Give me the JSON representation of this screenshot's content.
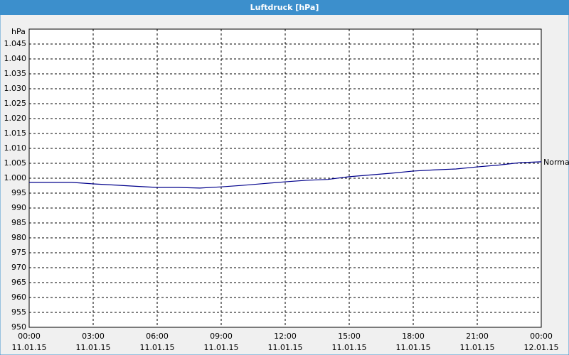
{
  "window_title": "Luftdruck [hPa]",
  "chart_data": {
    "type": "line",
    "y_unit": "hPa",
    "x": [
      0,
      1,
      2,
      3,
      4,
      5,
      6,
      7,
      8,
      9,
      10,
      11,
      12,
      13,
      14,
      15,
      16,
      17,
      18,
      19,
      20,
      21,
      22,
      23,
      24
    ],
    "series": [
      {
        "name": "Normal",
        "color": "#00008b",
        "values": [
          998.6,
          998.6,
          998.6,
          998.1,
          997.7,
          997.3,
          996.9,
          996.9,
          996.7,
          997.1,
          997.6,
          998.2,
          998.8,
          999.3,
          999.6,
          1000.5,
          1001.1,
          1001.7,
          1002.4,
          1002.8,
          1003.1,
          1003.8,
          1004.4,
          1005.2,
          1005.5
        ]
      }
    ],
    "xlim": [
      0,
      24
    ],
    "xticks": [
      {
        "value": 0,
        "label": "00:00"
      },
      {
        "value": 3,
        "label": "03:00"
      },
      {
        "value": 6,
        "label": "06:00"
      },
      {
        "value": 9,
        "label": "09:00"
      },
      {
        "value": 12,
        "label": "12:00"
      },
      {
        "value": 15,
        "label": "15:00"
      },
      {
        "value": 18,
        "label": "18:00"
      },
      {
        "value": 21,
        "label": "21:00"
      },
      {
        "value": 24,
        "label": "00:00"
      }
    ],
    "xtick_dates": [
      "11.01.15",
      "11.01.15",
      "11.01.15",
      "11.01.15",
      "11.01.15",
      "11.01.15",
      "11.01.15",
      "11.01.15",
      "12.01.15"
    ],
    "ylim": [
      950,
      1050
    ],
    "yticks": [
      950,
      955,
      960,
      965,
      970,
      975,
      980,
      985,
      990,
      995,
      {
        "value": 1000,
        "label": "1.000"
      },
      {
        "value": 1005,
        "label": "1.005"
      },
      {
        "value": 1010,
        "label": "1.010"
      },
      {
        "value": 1015,
        "label": "1.015"
      },
      {
        "value": 1020,
        "label": "1.020"
      },
      {
        "value": 1025,
        "label": "1.025"
      },
      {
        "value": 1030,
        "label": "1.030"
      },
      {
        "value": 1035,
        "label": "1.035"
      },
      {
        "value": 1040,
        "label": "1.040"
      },
      {
        "value": 1045,
        "label": "1.045"
      }
    ],
    "grid": true
  }
}
